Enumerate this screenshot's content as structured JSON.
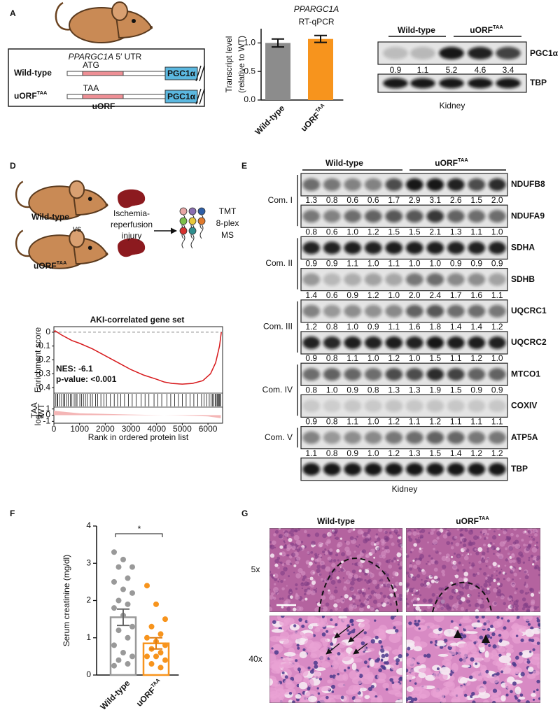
{
  "panel_labels": [
    "A",
    "D",
    "E",
    "F",
    "G"
  ],
  "panel_a": {
    "construct": {
      "title": [
        "PPARGC1A",
        " 5′ UTR"
      ],
      "rows": [
        {
          "name": "Wild-type",
          "codon": "ATG",
          "protein": "PGC1α"
        },
        {
          "name": [
            "uORF",
            "TAA"
          ],
          "codon": "TAA",
          "orf": "uORF",
          "protein": "PGC1α"
        }
      ]
    },
    "blot": {
      "groups": [
        "Wild-type",
        [
          "uORF",
          "TAA"
        ]
      ],
      "target": {
        "name": "PGC1α",
        "values": [
          "0.9",
          "1.1",
          "5.2",
          "4.6",
          "3.4"
        ]
      },
      "loading": "TBP",
      "tissue": "Kidney"
    }
  },
  "panel_d": {
    "mice": [
      "Wild-type",
      "vs",
      [
        "uORF",
        "TAA"
      ]
    ],
    "treatment": [
      "Ischemia-",
      "reperfusion",
      "injury"
    ],
    "method": [
      "TMT",
      "8-plex",
      "MS"
    ]
  },
  "panel_e": {
    "groups": [
      "Wild-type",
      [
        "uORF",
        "TAA"
      ]
    ],
    "complexes": [
      {
        "name": "Com. I",
        "proteins": [
          {
            "name": "NDUFB8",
            "values": [
              "1.3",
              "0.8",
              "0.6",
              "0.6",
              "1.7",
              "2.9",
              "3.1",
              "2.6",
              "1.5",
              "2.0"
            ]
          },
          {
            "name": "NDUFA9",
            "values": [
              "0.8",
              "0.6",
              "1.0",
              "1.2",
              "1.5",
              "1.5",
              "2.1",
              "1.3",
              "1.1",
              "1.0"
            ]
          }
        ]
      },
      {
        "name": "Com. II",
        "proteins": [
          {
            "name": "SDHA",
            "values": [
              "0.9",
              "0.9",
              "1.1",
              "1.0",
              "1.1",
              "1.0",
              "1.0",
              "0.9",
              "0.9",
              "0.9"
            ]
          },
          {
            "name": "SDHB",
            "values": [
              "1.4",
              "0.6",
              "0.9",
              "1.2",
              "1.0",
              "2.0",
              "2.4",
              "1.7",
              "1.6",
              "1.1"
            ]
          }
        ]
      },
      {
        "name": "Com. III",
        "proteins": [
          {
            "name": "UQCRC1",
            "values": [
              "1.2",
              "0.8",
              "1.0",
              "0.9",
              "1.1",
              "1.6",
              "1.8",
              "1.4",
              "1.4",
              "1.2"
            ]
          },
          {
            "name": "UQCRC2",
            "values": [
              "0.9",
              "0.8",
              "1.1",
              "1.0",
              "1.2",
              "1.0",
              "1.5",
              "1.1",
              "1.2",
              "1.0"
            ]
          }
        ]
      },
      {
        "name": "Com. IV",
        "proteins": [
          {
            "name": "MTCO1",
            "values": [
              "0.8",
              "1.0",
              "0.9",
              "0.8",
              "1.3",
              "1.3",
              "1.9",
              "1.5",
              "0.9",
              "0.9"
            ]
          },
          {
            "name": "COXIV",
            "values": [
              "0.9",
              "0.8",
              "1.1",
              "1.0",
              "1.2",
              "1.1",
              "1.2",
              "1.1",
              "1.1",
              "1.1"
            ]
          }
        ]
      },
      {
        "name": "Com. V",
        "proteins": [
          {
            "name": "ATP5A",
            "values": [
              "1.1",
              "0.8",
              "0.9",
              "1.0",
              "1.2",
              "1.3",
              "1.5",
              "1.4",
              "1.2",
              "1.2"
            ]
          }
        ]
      }
    ],
    "loading": "TBP",
    "tissue": "Kidney"
  },
  "panel_g": {
    "columns": [
      "Wild-type",
      [
        "uORF",
        "TAA"
      ]
    ],
    "rows": [
      "5x",
      "40x"
    ]
  },
  "chart_data": [
    {
      "type": "bar",
      "title": [
        "PPARGC1A",
        "RT-qPCR"
      ],
      "ylabel": [
        "Transcript level",
        "(relative to WT)"
      ],
      "categories": [
        "Wild-type",
        [
          "uORF",
          "TAA"
        ]
      ],
      "values": [
        1.0,
        1.07
      ],
      "errors": [
        0.07,
        0.06
      ],
      "colors": [
        "#8c8c8c",
        "#f7941d"
      ],
      "filled": true,
      "ylim": [
        0,
        1.25
      ],
      "yticks": [
        {
          "value": 0,
          "label": "0.0"
        },
        {
          "value": 0.5,
          "label": "0.5"
        },
        {
          "value": 1,
          "label": "1.0"
        }
      ]
    },
    {
      "type": "line",
      "title": "AKI-correlated gene set",
      "xlabel": "Rank in ordered protein list",
      "ylabel": "Enrichment score",
      "annotations": [
        "NES: -6.1",
        "p-value: <0.001"
      ],
      "x": [
        0,
        50,
        300,
        700,
        1000,
        1500,
        2000,
        2500,
        3000,
        3500,
        4000,
        4300,
        4600,
        5000,
        5400,
        5800,
        6100,
        6300,
        6450,
        6520
      ],
      "values": [
        0,
        0.01,
        -0.02,
        -0.06,
        -0.08,
        -0.12,
        -0.17,
        -0.22,
        -0.27,
        -0.31,
        -0.34,
        -0.36,
        -0.37,
        -0.375,
        -0.37,
        -0.35,
        -0.3,
        -0.22,
        -0.1,
        0.0
      ],
      "color": "#d7191c",
      "xlim": [
        0,
        6570
      ],
      "xticks": [
        0,
        1000,
        2000,
        3000,
        4000,
        5000,
        6000
      ],
      "ylim": [
        -0.44,
        0.04
      ],
      "yticks": [
        0,
        -0.1,
        -0.2,
        -0.3,
        -0.4
      ],
      "hits": [
        60,
        120,
        150,
        230,
        300,
        380,
        420,
        500,
        560,
        640,
        700,
        790,
        850,
        900,
        1010,
        1080,
        1150,
        1230,
        1300,
        1420,
        1500,
        1620,
        1700,
        1830,
        1950,
        2050,
        2200,
        2350,
        2480,
        2600,
        2750,
        2900,
        3050,
        3200,
        3400,
        3550,
        3700,
        3900,
        4050,
        4200,
        4400,
        4550,
        4700,
        4850,
        5000,
        5150,
        5300,
        5450,
        5600,
        5750,
        5850,
        5950,
        6050,
        6120,
        6180,
        6230,
        6280,
        6320,
        6360,
        6400,
        6430,
        6460,
        6490
      ],
      "ratio": {
        "ylabel": {
          "base": "log",
          "sub": "2",
          "num": "TAA",
          "den": "WT"
        },
        "x": [
          0,
          1000,
          3000,
          5000,
          6000,
          6500
        ],
        "values": [
          0.7,
          0.3,
          0.1,
          -0.05,
          -0.2,
          -0.5
        ],
        "color": "#f4b6b6",
        "ylim": [
          -1.3,
          1.3
        ],
        "yticks": [
          1,
          0,
          -1
        ]
      }
    },
    {
      "type": "bar",
      "ylabel": "Serum creatinine (mg/dl)",
      "categories": [
        "Wild-type",
        [
          "uORF",
          "TAA"
        ]
      ],
      "values": [
        1.55,
        0.85
      ],
      "errors": [
        0.22,
        0.15
      ],
      "colors": [
        "#999999",
        "#f7941d"
      ],
      "filled": false,
      "points": [
        [
          3.3,
          3.1,
          2.9,
          2.9,
          2.6,
          2.5,
          2.3,
          2.2,
          2.0,
          1.9,
          1.8,
          1.6,
          1.3,
          1.2,
          1.0,
          0.8,
          0.6,
          0.5,
          0.4,
          0.3,
          0.25
        ],
        [
          2.4,
          1.9,
          1.5,
          1.3,
          1.1,
          1.0,
          0.9,
          0.8,
          0.7,
          0.6,
          0.5,
          0.5,
          0.4,
          0.3,
          0.2
        ]
      ],
      "annotation": "*",
      "ylim": [
        0,
        4
      ],
      "yticks": [
        0,
        1,
        2,
        3,
        4
      ]
    }
  ]
}
